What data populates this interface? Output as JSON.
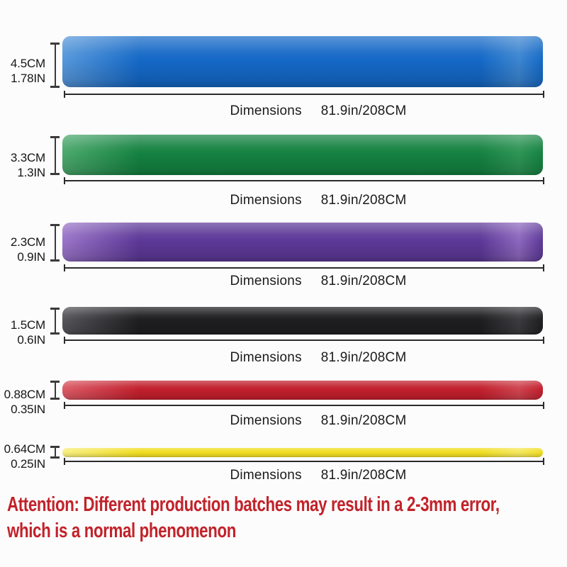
{
  "page": {
    "background": "#fcfcfc",
    "measure_line_color": "#2b2b2b"
  },
  "bands": [
    {
      "name": "blue",
      "size_cm": "4.5CM",
      "size_in": "1.78IN",
      "dim_label": "Dimensions",
      "dim_value": "81.9in/208CM",
      "color_main": "#1468c6",
      "color_light": "#5697da",
      "color_edge": "#3c85d0"
    },
    {
      "name": "green",
      "size_cm": "3.3CM",
      "size_in": "1.3IN",
      "dim_label": "Dimensions",
      "dim_value": "81.9in/208CM",
      "color_main": "#148140",
      "color_light": "#4ba86c",
      "color_edge": "#2d9455"
    },
    {
      "name": "purple",
      "size_cm": "2.3CM",
      "size_in": "0.9IN",
      "dim_label": "Dimensions",
      "dim_value": "81.9in/208CM",
      "color_main": "#5c3897",
      "color_light": "#9a74c8",
      "color_edge": "#8c67bd"
    },
    {
      "name": "black",
      "size_cm": "1.5CM",
      "size_in": "0.6IN",
      "dim_label": "Dimensions",
      "dim_value": "81.9in/208CM",
      "color_main": "#1e1e20",
      "color_light": "#55555a",
      "color_edge": "#3c3c40"
    },
    {
      "name": "red",
      "size_cm": "0.88CM",
      "size_in": "0.35IN",
      "dim_label": "Dimensions",
      "dim_value": "81.9in/208CM",
      "color_main": "#c11f2c",
      "color_light": "#da5a66",
      "color_edge": "#ce434f"
    },
    {
      "name": "yellow",
      "size_cm": "0.64CM",
      "size_in": "0.25IN",
      "dim_label": "Dimensions",
      "dim_value": "81.9in/208CM",
      "color_main": "#f1de22",
      "color_light": "#f8ee80",
      "color_edge": "#f5e75e"
    }
  ],
  "attention": {
    "color": "#c2222a",
    "line1": "Attention: Different production batches may result in a 2-3mm error,",
    "line2": "which is a normal phenomenon"
  }
}
